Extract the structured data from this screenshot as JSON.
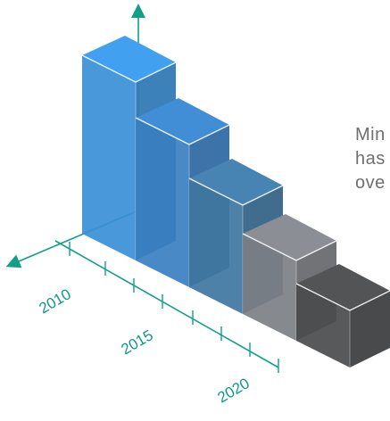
{
  "caption": {
    "line1": "Min",
    "line2": "has",
    "line3": "ove"
  },
  "colors": {
    "axis": "#12a085",
    "bar_2010": "#3a8fd6",
    "bar_2012": "#3a7fc0",
    "bar_2014": "#3f76a0",
    "bar_2016": "#7c7f84",
    "bar_2018": "#4a4b4d"
  },
  "chart_data": {
    "type": "bar",
    "categories": [
      "2010",
      "",
      "2015",
      "",
      "2020"
    ],
    "series": [
      {
        "values": [
          100,
          80,
          61,
          45,
          32
        ]
      }
    ],
    "tick_labels": [
      "2010",
      "2015",
      "2020"
    ],
    "ylim": [
      0,
      110
    ],
    "grid": false,
    "style": "3d-isometric"
  }
}
